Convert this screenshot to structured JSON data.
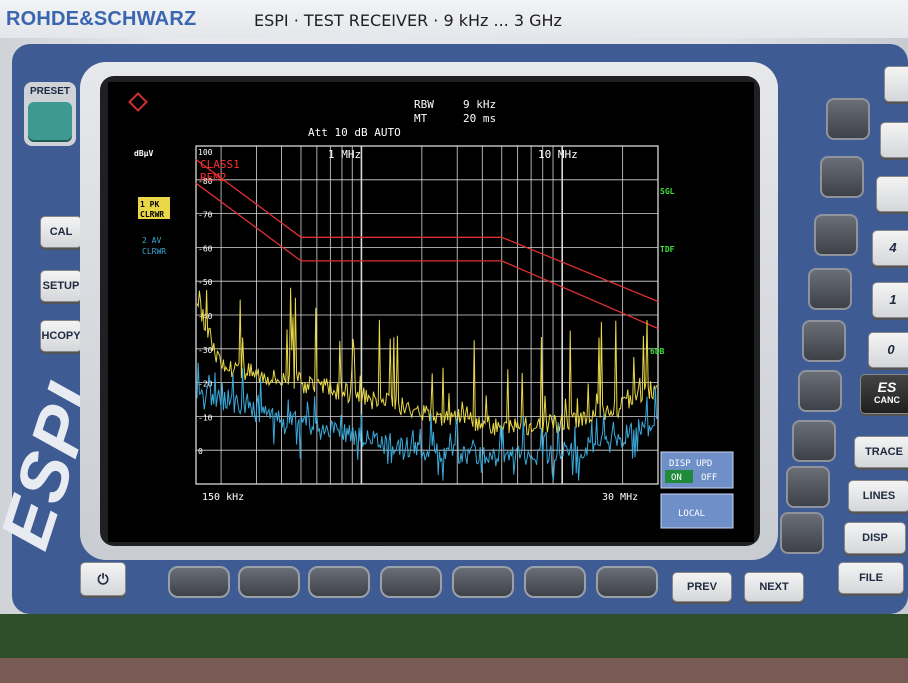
{
  "brand": "ROHDE&SCHWARZ",
  "model": "ESPI · TEST RECEIVER · 9 kHz ... 3 GHz",
  "logo_text": "ESPI",
  "front_buttons": {
    "preset": "PRESET",
    "cal": "CAL",
    "setup": "SETUP",
    "hcopy": "HCOPY",
    "prev": "PREV",
    "next": "NEXT",
    "trace": "TRACE",
    "lines": "LINES",
    "disp": "DISP",
    "file": "FILE",
    "esc": "ES",
    "esc_sub": "CANC",
    "key_4": "4",
    "key_1": "1",
    "key_0": "0"
  },
  "screen": {
    "rbw_label": "RBW",
    "rbw_value": "9 kHz",
    "mt_label": "MT",
    "mt_value": "20 ms",
    "att": "Att 10 dB AUTO",
    "unit": "dBµV",
    "trace1_label": "1 PK",
    "trace1_mode": "CLRWR",
    "trace2_label": "2 AV",
    "trace2_mode": "CLRWR",
    "limit1": "CLASS1",
    "limit2": "REM2",
    "right_sgl": "SGL",
    "right_tdf": "TDF",
    "right_6db": "6DB",
    "freq_start": "150 kHz",
    "freq_stop": "30 MHz",
    "freq_1mhz": "1 MHz",
    "freq_10mhz": "10 MHz",
    "y_ticks": [
      "100",
      "-80",
      "-70",
      "-60",
      "-50",
      "-40",
      "-30",
      "-20",
      "-10",
      "0"
    ],
    "softkey_disp_upd": "DISP UPD",
    "softkey_on": "ON",
    "softkey_off": "OFF",
    "softkey_local": "LOCAL"
  },
  "chart_data": {
    "type": "line",
    "title": "",
    "xlabel": "",
    "ylabel": "dBµV",
    "x_scale": "log",
    "xlim_hz": [
      150000,
      30000000
    ],
    "ylim": [
      0,
      100
    ],
    "series": [
      {
        "name": "CLASS1",
        "color": "#e03030",
        "x": [
          150000,
          500000,
          500000,
          5000000,
          30000000
        ],
        "y": [
          96,
          73,
          73,
          73,
          54
        ]
      },
      {
        "name": "REM2",
        "color": "#e03030",
        "x": [
          150000,
          500000,
          500000,
          5000000,
          30000000
        ],
        "y": [
          89,
          66,
          66,
          66,
          46
        ]
      },
      {
        "name": "1 PK",
        "color": "#e8d848",
        "x": [
          150000,
          200000,
          300000,
          500000,
          1000000,
          2000000,
          5000000,
          10000000,
          20000000,
          30000000
        ],
        "y": [
          55,
          35,
          33,
          30,
          26,
          21,
          17,
          18,
          23,
          29
        ]
      },
      {
        "name": "2 AV",
        "color": "#3aa8d8",
        "x": [
          150000,
          200000,
          300000,
          500000,
          1000000,
          2000000,
          5000000,
          10000000,
          20000000,
          30000000
        ],
        "y": [
          28,
          25,
          22,
          18,
          14,
          10,
          8,
          9,
          14,
          20
        ]
      }
    ]
  },
  "colors": {
    "panel_blue": "#3f5b93",
    "grid": "#e8e8e8",
    "limit": "#e03030",
    "peak": "#e8d848",
    "avg": "#3aa8d8",
    "annot_green": "#40e040",
    "softkey_bg": "#6f8fc8"
  }
}
